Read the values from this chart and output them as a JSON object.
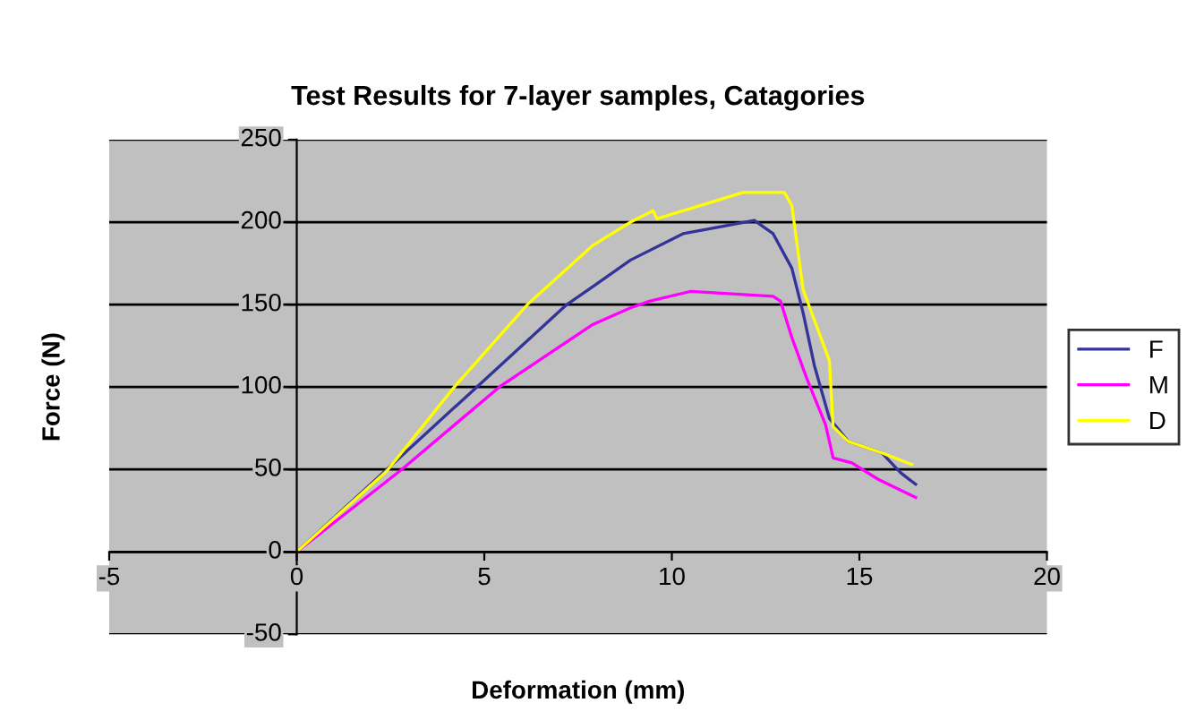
{
  "chart_data": {
    "type": "line",
    "title": "Test Results for 7-layer samples, Catagories",
    "xlabel": "Deformation (mm)",
    "ylabel": "Force (N)",
    "xlim": [
      -5,
      20
    ],
    "ylim": [
      -50,
      250
    ],
    "xticks": [
      -5,
      0,
      5,
      10,
      15,
      20
    ],
    "yticks": [
      -50,
      0,
      50,
      100,
      150,
      200,
      250
    ],
    "grid": "y",
    "legend": "right",
    "marker": "none",
    "line_style": "solid",
    "series": [
      {
        "name": "F",
        "color": "#333399",
        "x": [
          0,
          2.4,
          4.8,
          7.2,
          7.9,
          8.9,
          10.3,
          12.2,
          12.7,
          13.2,
          13.5,
          13.8,
          14.2,
          14.7,
          15.6,
          16.1,
          16.5
        ],
        "values": [
          0,
          50,
          100,
          150,
          161,
          177,
          193,
          201,
          193,
          172,
          145,
          113,
          81,
          67,
          60,
          48,
          41
        ]
      },
      {
        "name": "M",
        "color": "#ff00ff",
        "x": [
          0,
          2.8,
          5.4,
          7.9,
          8.9,
          9.4,
          10.5,
          12.7,
          12.9,
          13.2,
          13.6,
          14.1,
          14.3,
          14.8,
          15.5,
          16.5
        ],
        "values": [
          0,
          50,
          100,
          138,
          148,
          152,
          158,
          155,
          152,
          130,
          105,
          77,
          57,
          54,
          44,
          33
        ]
      },
      {
        "name": "D",
        "color": "#ffff00",
        "x": [
          0,
          2.4,
          4.2,
          6.15,
          7.9,
          8.9,
          9.5,
          9.6,
          11.9,
          13.0,
          13.2,
          13.5,
          14.2,
          14.3,
          14.7,
          15.6,
          16.4
        ],
        "values": [
          0,
          49,
          100,
          150,
          186,
          200,
          207,
          202,
          218,
          218,
          210,
          159,
          116,
          76,
          67,
          60,
          53
        ]
      }
    ]
  }
}
